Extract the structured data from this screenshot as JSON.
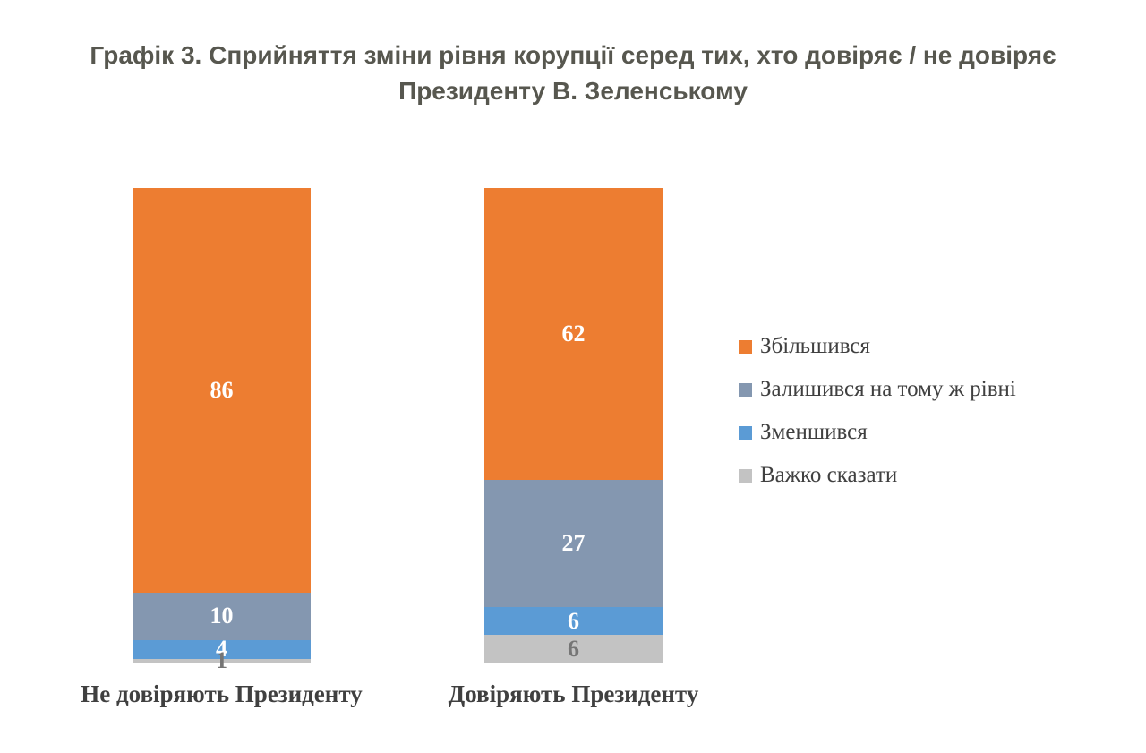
{
  "title": "Графік 3. Сприйняття зміни рівня корупції серед тих, хто довіряє / не довіряє Президенту В. Зеленському",
  "colors": {
    "background": "#FFFFFF",
    "title_text": "#57574F",
    "axis_text": "#404040",
    "legend_text": "#404040"
  },
  "chart_data": {
    "type": "bar",
    "subtype": "stacked-column",
    "title": "Графік 3. Сприйняття зміни рівня корупції серед тих, хто довіряє / не довіряє Президенту В. Зеленському",
    "categories": [
      "Не довіряють Президенту",
      "Довіряють Президенту"
    ],
    "series": [
      {
        "name": "Збільшився",
        "color": "#ED7D31",
        "label_color": "#FFFFFF",
        "values": [
          86,
          62
        ]
      },
      {
        "name": "Залишився на тому ж рівні",
        "color": "#8497B0",
        "label_color": "#FFFFFF",
        "values": [
          10,
          27
        ]
      },
      {
        "name": "Зменшився",
        "color": "#5B9BD5",
        "label_color": "#FFFFFF",
        "values": [
          4,
          6
        ]
      },
      {
        "name": "Важко сказати",
        "color": "#C3C3C3",
        "label_color": "#757575",
        "values": [
          1,
          6
        ]
      }
    ],
    "stack_totals": [
      101,
      101
    ],
    "value_axis_visible": false,
    "gridlines": false,
    "data_labels": "center",
    "legend_position": "right"
  }
}
